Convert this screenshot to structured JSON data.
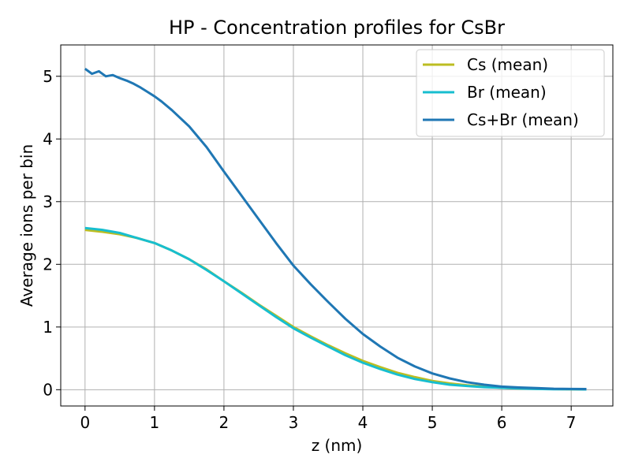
{
  "chart_data": {
    "type": "line",
    "title": "HP - Concentration profiles for CsBr",
    "xlabel": "z (nm)",
    "ylabel": "Average ions per bin",
    "xlim": [
      -0.35,
      7.6
    ],
    "ylim": [
      -0.26,
      5.5
    ],
    "xticks": [
      0,
      1,
      2,
      3,
      4,
      5,
      6,
      7
    ],
    "yticks": [
      0,
      1,
      2,
      3,
      4,
      5
    ],
    "grid": true,
    "legend_position": "top-right",
    "series": [
      {
        "name": "Cs (mean)",
        "color": "#bcbd22",
        "x": [
          0,
          0.25,
          0.5,
          0.75,
          1.0,
          1.25,
          1.5,
          1.75,
          2.0,
          2.25,
          2.5,
          2.75,
          3.0,
          3.25,
          3.5,
          3.75,
          4.0,
          4.25,
          4.5,
          4.75,
          5.0,
          5.25,
          5.5,
          5.75,
          6.0,
          6.25,
          6.5,
          6.75,
          7.0,
          7.22
        ],
        "y": [
          2.55,
          2.52,
          2.48,
          2.42,
          2.34,
          2.22,
          2.08,
          1.92,
          1.73,
          1.55,
          1.36,
          1.18,
          1.0,
          0.85,
          0.71,
          0.58,
          0.46,
          0.36,
          0.27,
          0.2,
          0.14,
          0.1,
          0.07,
          0.05,
          0.03,
          0.02,
          0.015,
          0.01,
          0.008,
          0.005
        ]
      },
      {
        "name": "Br (mean)",
        "color": "#17becf",
        "x": [
          0,
          0.25,
          0.5,
          0.75,
          1.0,
          1.25,
          1.5,
          1.75,
          2.0,
          2.25,
          2.5,
          2.75,
          3.0,
          3.25,
          3.5,
          3.75,
          4.0,
          4.25,
          4.5,
          4.75,
          5.0,
          5.25,
          5.5,
          5.75,
          6.0,
          6.25,
          6.5,
          6.75,
          7.0,
          7.22
        ],
        "y": [
          2.58,
          2.55,
          2.5,
          2.42,
          2.34,
          2.22,
          2.08,
          1.91,
          1.73,
          1.54,
          1.35,
          1.16,
          0.98,
          0.83,
          0.69,
          0.55,
          0.43,
          0.33,
          0.24,
          0.17,
          0.12,
          0.08,
          0.06,
          0.04,
          0.03,
          0.02,
          0.012,
          0.008,
          0.006,
          0.004
        ]
      },
      {
        "name": "Cs+Br (mean)",
        "color": "#1f77b4",
        "x": [
          0,
          0.1,
          0.2,
          0.3,
          0.4,
          0.5,
          0.6,
          0.7,
          0.8,
          0.9,
          1.0,
          1.1,
          1.25,
          1.5,
          1.75,
          2.0,
          2.25,
          2.5,
          2.75,
          3.0,
          3.25,
          3.5,
          3.75,
          4.0,
          4.25,
          4.5,
          4.75,
          5.0,
          5.25,
          5.5,
          5.75,
          6.0,
          6.25,
          6.5,
          6.75,
          7.0,
          7.22
        ],
        "y": [
          5.12,
          5.04,
          5.08,
          5.0,
          5.02,
          4.97,
          4.93,
          4.88,
          4.82,
          4.75,
          4.68,
          4.6,
          4.46,
          4.2,
          3.87,
          3.48,
          3.1,
          2.72,
          2.34,
          1.98,
          1.68,
          1.4,
          1.13,
          0.89,
          0.69,
          0.51,
          0.37,
          0.26,
          0.18,
          0.12,
          0.08,
          0.05,
          0.035,
          0.025,
          0.016,
          0.012,
          0.01
        ]
      }
    ]
  }
}
